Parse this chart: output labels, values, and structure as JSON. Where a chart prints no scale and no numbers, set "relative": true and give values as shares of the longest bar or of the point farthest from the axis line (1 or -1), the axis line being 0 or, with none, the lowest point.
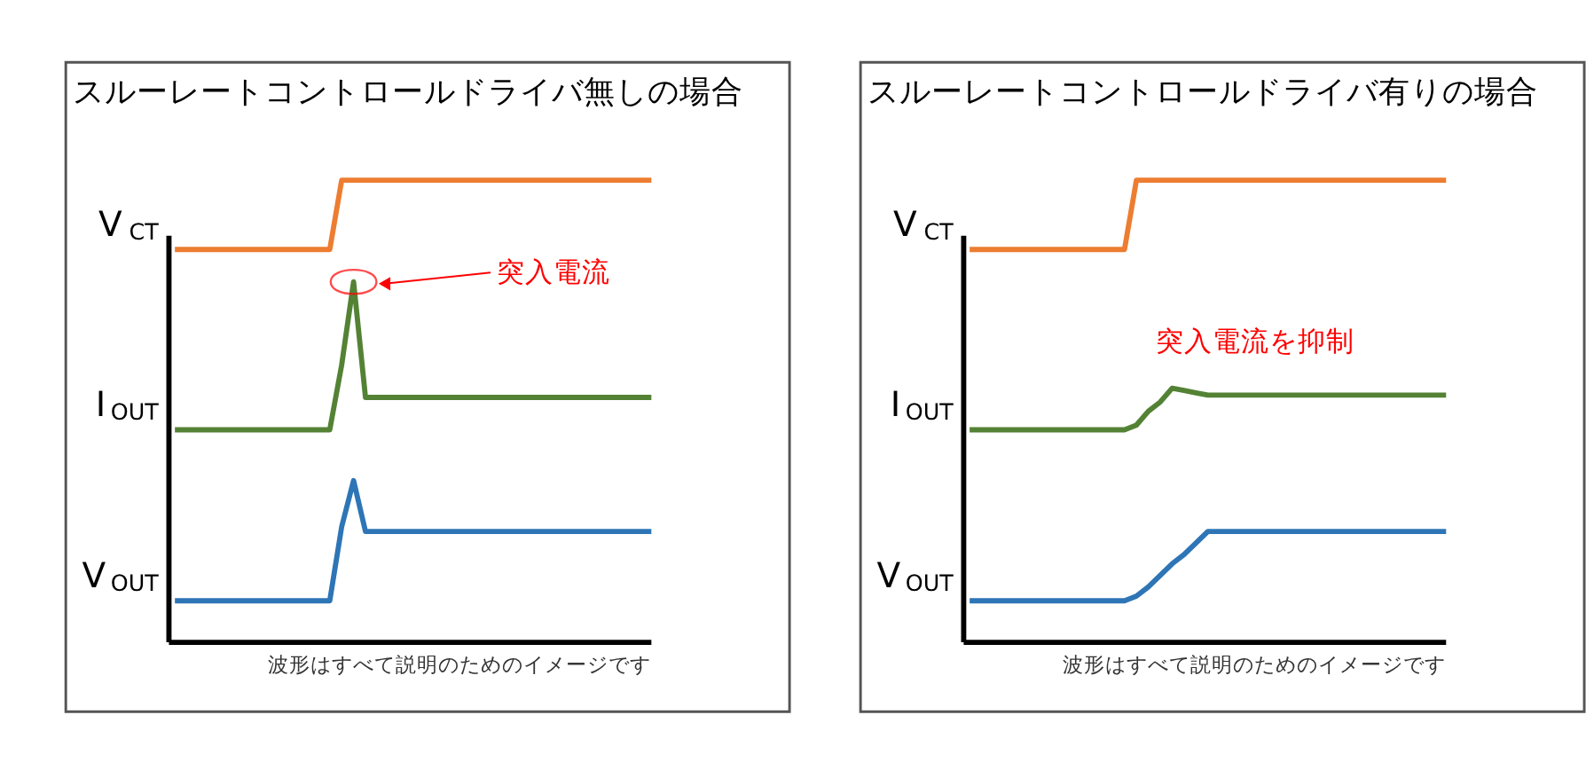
{
  "chart_data": [
    {
      "type": "line",
      "title": "スルーレートコントロールドライバ無しの場合",
      "relative": true,
      "legend": false,
      "line_style": "solid",
      "categories": [
        null,
        null,
        null,
        null,
        null,
        null,
        null,
        null,
        null,
        null,
        null,
        null,
        null,
        null,
        null,
        null,
        null,
        null,
        null,
        null,
        null,
        null,
        null,
        null,
        null,
        null,
        null,
        null,
        null,
        null,
        null,
        null,
        null,
        null,
        null,
        null,
        null,
        null,
        null,
        null,
        null
      ],
      "series": [
        {
          "name": "V$_{CT}$",
          "color": "#ed7d31",
          "values": [
            0.85,
            0.85,
            0.85,
            0.85,
            0.85,
            0.85,
            0.85,
            0.85,
            0.85,
            0.85,
            0.85,
            0.85,
            0.85,
            0.85,
            1.0,
            1.0,
            1.0,
            1.0,
            1.0,
            1.0,
            1.0,
            1.0,
            1.0,
            1.0,
            1.0,
            1.0,
            1.0,
            1.0,
            1.0,
            1.0,
            1.0,
            1.0,
            1.0,
            1.0,
            1.0,
            1.0,
            1.0,
            1.0,
            1.0,
            1.0,
            1.0
          ]
        },
        {
          "name": "I$_{OUT}$",
          "color": "#548235",
          "values": [
            0.46,
            0.46,
            0.46,
            0.46,
            0.46,
            0.46,
            0.46,
            0.46,
            0.46,
            0.46,
            0.46,
            0.46,
            0.46,
            0.46,
            0.6,
            0.78,
            0.53,
            0.53,
            0.53,
            0.53,
            0.53,
            0.53,
            0.53,
            0.53,
            0.53,
            0.53,
            0.53,
            0.53,
            0.53,
            0.53,
            0.53,
            0.53,
            0.53,
            0.53,
            0.53,
            0.53,
            0.53,
            0.53,
            0.53,
            0.53,
            0.53
          ]
        },
        {
          "name": "V$_{OUT}$",
          "color": "#2e75b6",
          "values": [
            0.09,
            0.09,
            0.09,
            0.09,
            0.09,
            0.09,
            0.09,
            0.09,
            0.09,
            0.09,
            0.09,
            0.09,
            0.09,
            0.09,
            0.25,
            0.35,
            0.24,
            0.24,
            0.24,
            0.24,
            0.24,
            0.24,
            0.24,
            0.24,
            0.24,
            0.24,
            0.24,
            0.24,
            0.24,
            0.24,
            0.24,
            0.24,
            0.24,
            0.24,
            0.24,
            0.24,
            0.24,
            0.24,
            0.24,
            0.24,
            0.24
          ]
        }
      ],
      "annotations": [
        "突入電流",
        "波形はすべて説明のためのイメージです"
      ]
    },
    {
      "type": "line",
      "title": "スルーレートコントロールドライバ有りの場合",
      "relative": true,
      "legend": false,
      "line_style": "solid",
      "categories": [
        null,
        null,
        null,
        null,
        null,
        null,
        null,
        null,
        null,
        null,
        null,
        null,
        null,
        null,
        null,
        null,
        null,
        null,
        null,
        null,
        null,
        null,
        null,
        null,
        null,
        null,
        null,
        null,
        null,
        null,
        null,
        null,
        null,
        null,
        null,
        null,
        null,
        null,
        null,
        null,
        null
      ],
      "series": [
        {
          "name": "V$_{CT}$",
          "color": "#ed7d31",
          "values": [
            0.85,
            0.85,
            0.85,
            0.85,
            0.85,
            0.85,
            0.85,
            0.85,
            0.85,
            0.85,
            0.85,
            0.85,
            0.85,
            0.85,
            1.0,
            1.0,
            1.0,
            1.0,
            1.0,
            1.0,
            1.0,
            1.0,
            1.0,
            1.0,
            1.0,
            1.0,
            1.0,
            1.0,
            1.0,
            1.0,
            1.0,
            1.0,
            1.0,
            1.0,
            1.0,
            1.0,
            1.0,
            1.0,
            1.0,
            1.0,
            1.0
          ]
        },
        {
          "name": "I$_{OUT}$",
          "color": "#548235",
          "values": [
            0.46,
            0.46,
            0.46,
            0.46,
            0.46,
            0.46,
            0.46,
            0.46,
            0.46,
            0.46,
            0.46,
            0.46,
            0.46,
            0.46,
            0.47,
            0.5,
            0.52,
            0.55,
            0.545,
            0.54,
            0.535,
            0.535,
            0.535,
            0.535,
            0.535,
            0.535,
            0.535,
            0.535,
            0.535,
            0.535,
            0.535,
            0.535,
            0.535,
            0.535,
            0.535,
            0.535,
            0.535,
            0.535,
            0.535,
            0.535,
            0.535
          ]
        },
        {
          "name": "V$_{OUT}$",
          "color": "#2e75b6",
          "values": [
            0.09,
            0.09,
            0.09,
            0.09,
            0.09,
            0.09,
            0.09,
            0.09,
            0.09,
            0.09,
            0.09,
            0.09,
            0.09,
            0.09,
            0.1,
            0.12,
            0.145,
            0.17,
            0.19,
            0.215,
            0.24,
            0.24,
            0.24,
            0.24,
            0.24,
            0.24,
            0.24,
            0.24,
            0.24,
            0.24,
            0.24,
            0.24,
            0.24,
            0.24,
            0.24,
            0.24,
            0.24,
            0.24,
            0.24,
            0.24,
            0.24
          ]
        }
      ],
      "annotations": [
        "突入電流を抑制",
        "波形はすべて説明のためのイメージです"
      ]
    }
  ]
}
